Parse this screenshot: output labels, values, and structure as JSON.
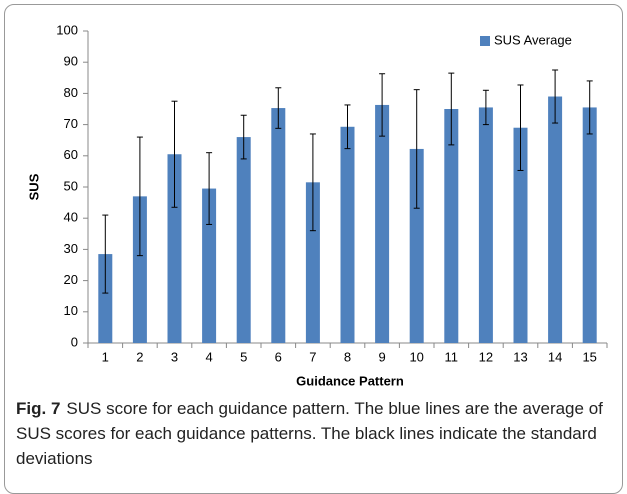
{
  "chart_data": {
    "type": "bar",
    "categories": [
      "1",
      "2",
      "3",
      "4",
      "5",
      "6",
      "7",
      "8",
      "9",
      "10",
      "11",
      "12",
      "13",
      "14",
      "15"
    ],
    "series": [
      {
        "name": "SUS Average",
        "color": "#4f81bd",
        "values": [
          28.5,
          47,
          60.5,
          49.5,
          66,
          75.3,
          51.5,
          69.3,
          76.3,
          62.2,
          75,
          75.5,
          69,
          79,
          75.5
        ],
        "errors": [
          12.5,
          19,
          17,
          11.5,
          7,
          6.5,
          15.5,
          7,
          10,
          19,
          11.5,
          5.5,
          13.7,
          8.5,
          8.5
        ]
      }
    ],
    "error_color": "#000000",
    "ylim": [
      0,
      100
    ],
    "yticks": [
      0,
      10,
      20,
      30,
      40,
      50,
      60,
      70,
      80,
      90,
      100
    ],
    "ylabel": "SUS",
    "xlabel": "Guidance Pattern",
    "legend": "top-right",
    "grid": false,
    "caption_label": "Fig. 7",
    "caption": "SUS score for each guidance pattern. The blue lines are the average of SUS scores for each guidance patterns. The black lines indicate the standard deviations"
  }
}
